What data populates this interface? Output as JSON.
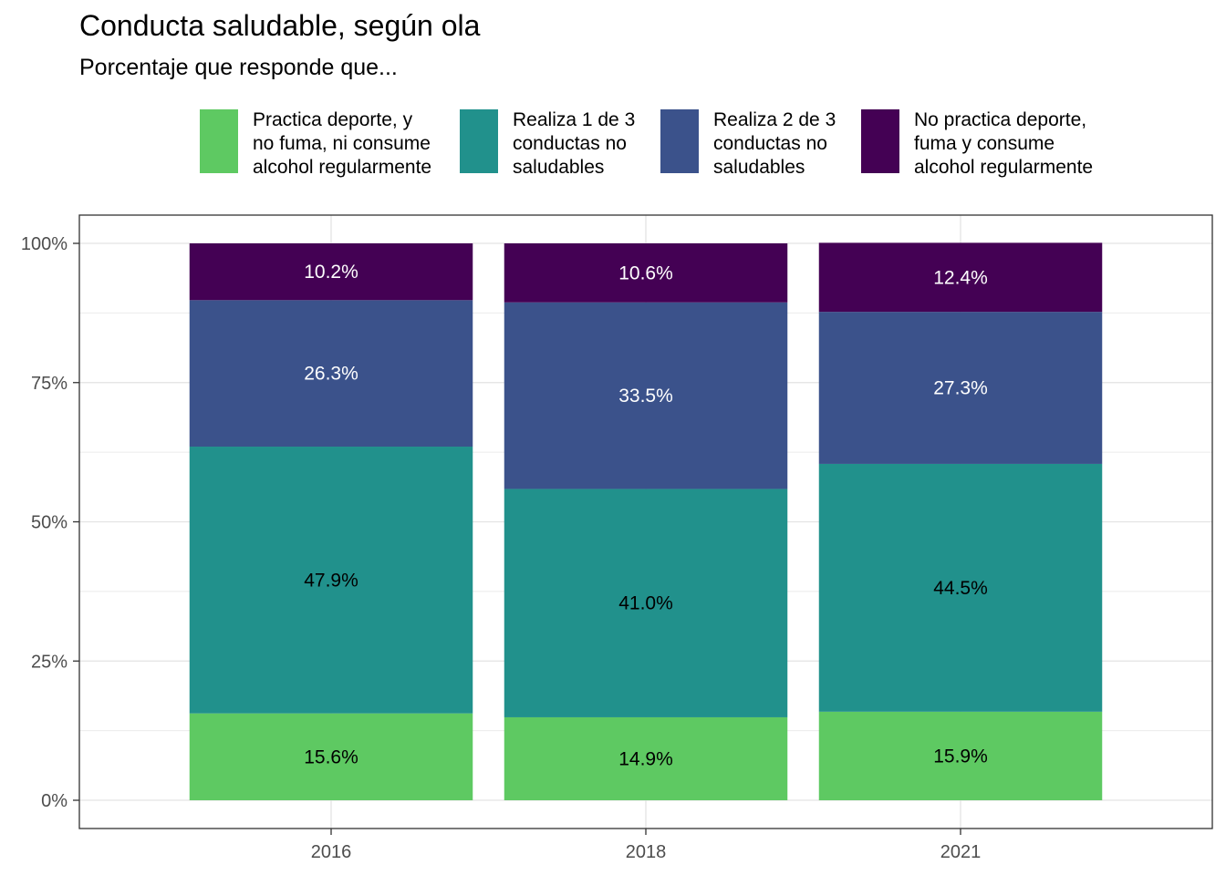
{
  "chart_data": {
    "type": "bar",
    "stacked": true,
    "title": "Conducta saludable, según ola",
    "subtitle": "Porcentaje que responde que...",
    "categories": [
      "2016",
      "2018",
      "2021"
    ],
    "ylim": [
      0,
      100
    ],
    "y_ticks": [
      "0%",
      "25%",
      "50%",
      "75%",
      "100%"
    ],
    "y_tick_values": [
      0,
      25,
      50,
      75,
      100
    ],
    "grid": true,
    "legend_position": "top",
    "series": [
      {
        "name": "Practica deporte, y\nno fuma, ni consume\nalcohol regularmente",
        "color": "#5ec962",
        "label_color": "#000000",
        "values": [
          15.6,
          14.9,
          15.9
        ],
        "labels": [
          "15.6%",
          "14.9%",
          "15.9%"
        ]
      },
      {
        "name": "Realiza 1 de 3\nconductas no\nsaludables",
        "color": "#21918c",
        "label_color": "#000000",
        "values": [
          47.9,
          41.0,
          44.5
        ],
        "labels": [
          "47.9%",
          "41.0%",
          "44.5%"
        ]
      },
      {
        "name": "Realiza 2 de 3\nconductas no\nsaludables",
        "color": "#3b528b",
        "label_color": "#ffffff",
        "values": [
          26.3,
          33.5,
          27.3
        ],
        "labels": [
          "26.3%",
          "33.5%",
          "27.3%"
        ]
      },
      {
        "name": "No practica deporte,\nfuma y consume\nalcohol regularmente",
        "color": "#440154",
        "label_color": "#ffffff",
        "values": [
          10.2,
          10.6,
          12.4
        ],
        "labels": [
          "10.2%",
          "10.6%",
          "12.4%"
        ]
      }
    ]
  }
}
